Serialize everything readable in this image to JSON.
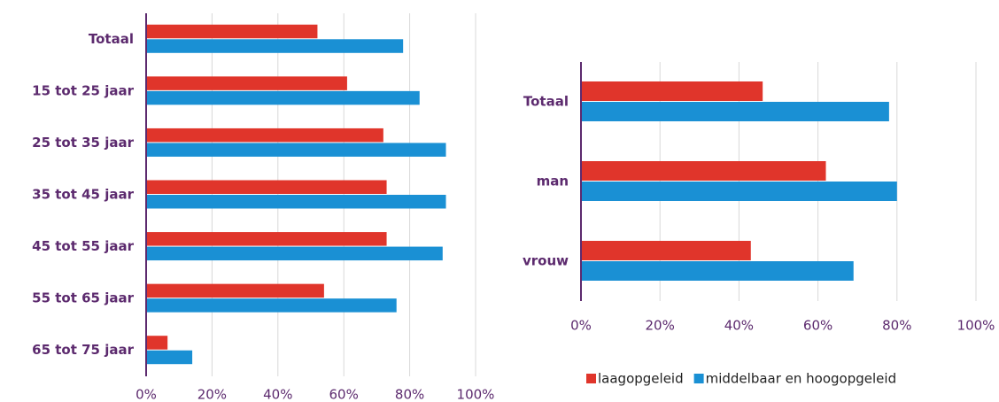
{
  "chart_data": [
    {
      "type": "barh",
      "categories": [
        "Totaal",
        "15 tot 25 jaar",
        "25 tot 35 jaar",
        "35 tot 45 jaar",
        "45 tot 55 jaar",
        "55 tot 65 jaar",
        "65 tot 75 jaar"
      ],
      "series": [
        {
          "name": "laagopgeleid",
          "color": "#e0352b",
          "values": [
            52,
            61,
            72,
            73,
            73,
            54,
            6.5
          ]
        },
        {
          "name": "middelbaar en hoogopgeleid",
          "color": "#1a90d4",
          "values": [
            78,
            83,
            91,
            91,
            90,
            76,
            14
          ]
        }
      ],
      "xlim": [
        0,
        100
      ],
      "xticks": [
        {
          "value": 0,
          "label": "0%"
        },
        {
          "value": 20,
          "label": "20%"
        },
        {
          "value": 40,
          "label": "40%"
        },
        {
          "value": 60,
          "label": "60%"
        },
        {
          "value": 80,
          "label": "80%"
        },
        {
          "value": 100,
          "label": "100%"
        }
      ],
      "grid": true
    },
    {
      "type": "barh",
      "categories": [
        "Totaal",
        "man",
        "vrouw"
      ],
      "series": [
        {
          "name": "laagopgeleid",
          "color": "#e0352b",
          "values": [
            46,
            62,
            43
          ]
        },
        {
          "name": "middelbaar en hoogopgeleid",
          "color": "#1a90d4",
          "values": [
            78,
            80,
            69
          ]
        }
      ],
      "xlim": [
        0,
        100
      ],
      "xticks": [
        {
          "value": 0,
          "label": "0%"
        },
        {
          "value": 20,
          "label": "20%"
        },
        {
          "value": 40,
          "label": "40%"
        },
        {
          "value": 60,
          "label": "60%"
        },
        {
          "value": 80,
          "label": "80%"
        },
        {
          "value": 100,
          "label": "100%"
        }
      ],
      "grid": true,
      "legend": "bottom"
    }
  ]
}
